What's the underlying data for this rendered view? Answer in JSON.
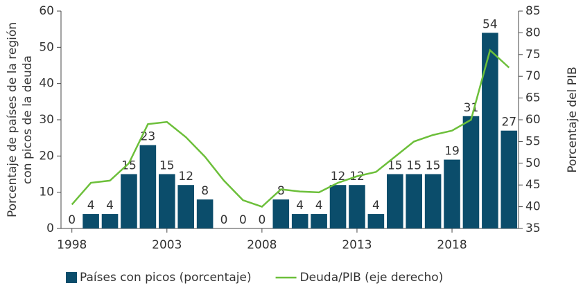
{
  "chart_data": {
    "type": "bar_line",
    "y_label": [
      "Porcentaje de países de la región",
      "con picos de la deuda"
    ],
    "y2_label": "Porcentaje del PIB",
    "categories": [
      "1998",
      null,
      null,
      null,
      null,
      "2003",
      null,
      null,
      null,
      null,
      "2008",
      null,
      null,
      null,
      null,
      "2013",
      null,
      null,
      null,
      null,
      "2018",
      null,
      null,
      null
    ],
    "series": [
      {
        "name": "Países con picos (porcentaje)",
        "color": "#0b4d6b",
        "kind": "bar",
        "values": [
          0,
          4,
          4,
          15,
          23,
          15,
          12,
          8,
          0,
          0,
          0,
          8,
          4,
          4,
          12,
          12,
          4,
          15,
          15,
          15,
          19,
          31,
          54,
          27
        ]
      },
      {
        "name": "Deuda/PIB (eje derecho)",
        "color": "#6cbf3a",
        "kind": "line",
        "axis": "y2",
        "values": [
          40.5,
          45.5,
          46,
          50,
          59,
          59.5,
          56,
          51.5,
          46,
          41.5,
          40,
          44,
          43.5,
          43.3,
          45.5,
          47,
          48,
          51.5,
          55,
          56.5,
          57.5,
          60,
          76,
          72
        ]
      }
    ],
    "ylim": [
      0,
      60
    ],
    "yticks": [
      0,
      10,
      20,
      30,
      40,
      50,
      60
    ],
    "y2lim": [
      35,
      85
    ],
    "y2ticks": [
      35,
      40,
      45,
      50,
      55,
      60,
      65,
      70,
      75,
      80,
      85
    ],
    "legend": "bottom"
  }
}
